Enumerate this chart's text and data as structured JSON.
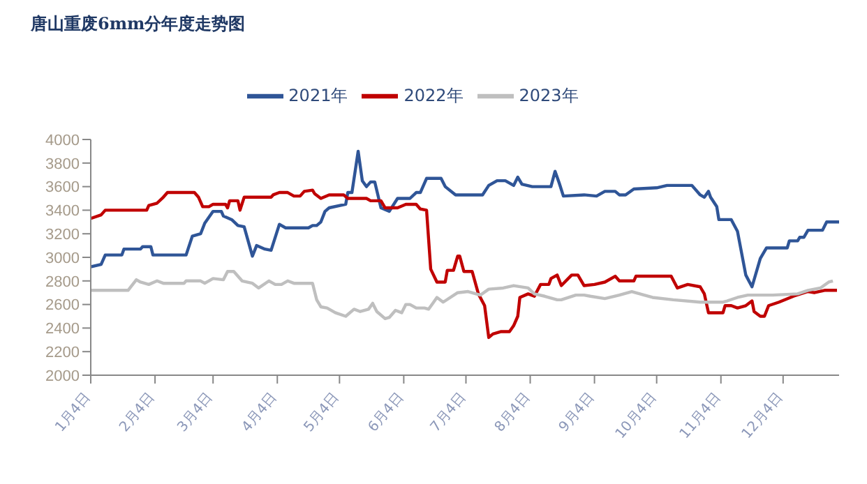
{
  "chart_data": {
    "type": "line",
    "title": "唐山重废6mm分年度走势图",
    "xlim": [
      "--01-04",
      "--12-31"
    ],
    "xticks": [
      {
        "value": "--01-04",
        "label": "1月4日"
      },
      {
        "value": "--02-04",
        "label": "2月4日"
      },
      {
        "value": "--03-04",
        "label": "3月4日"
      },
      {
        "value": "--04-04",
        "label": "4月4日"
      },
      {
        "value": "--05-04",
        "label": "5月4日"
      },
      {
        "value": "--06-04",
        "label": "6月4日"
      },
      {
        "value": "--07-04",
        "label": "7月4日"
      },
      {
        "value": "--08-04",
        "label": "8月4日"
      },
      {
        "value": "--09-04",
        "label": "9月4日"
      },
      {
        "value": "--10-04",
        "label": "10月4日"
      },
      {
        "value": "--11-04",
        "label": "11月4日"
      },
      {
        "value": "--12-04",
        "label": "12月4日"
      }
    ],
    "ylim": [
      2000,
      4000
    ],
    "yticks": [
      2000,
      2200,
      2400,
      2600,
      2800,
      3000,
      3200,
      3400,
      3600,
      3800,
      4000
    ],
    "legend": "top",
    "marker": "none",
    "line_style": "solid",
    "series": [
      {
        "name": "2021年",
        "color": "#2f5597",
        "x": [
          "--01-04",
          "--01-09",
          "--01-11",
          "--01-19",
          "--01-20",
          "--01-28",
          "--01-29",
          "--02-02",
          "--02-03",
          "--02-19",
          "--02-22",
          "--02-26",
          "--02-28",
          "--03-04",
          "--03-08",
          "--03-09",
          "--03-13",
          "--03-16",
          "--03-19",
          "--03-23",
          "--03-25",
          "--03-29",
          "--04-01",
          "--04-05",
          "--04-08",
          "--04-19",
          "--04-21",
          "--04-23",
          "--04-25",
          "--04-27",
          "--04-29",
          "--05-07",
          "--05-08",
          "--05-10",
          "--05-13",
          "--05-15",
          "--05-17",
          "--05-19",
          "--05-21",
          "--05-24",
          "--05-28",
          "--06-01",
          "--06-07",
          "--06-10",
          "--06-12",
          "--06-15",
          "--06-22",
          "--06-24",
          "--06-29",
          "--07-12",
          "--07-15",
          "--07-19",
          "--07-23",
          "--07-27",
          "--07-29",
          "--07-31",
          "--08-05",
          "--08-14",
          "--08-16",
          "--08-18",
          "--08-20",
          "--08-30",
          "--09-05",
          "--09-09",
          "--09-14",
          "--09-16",
          "--09-19",
          "--09-23",
          "--10-04",
          "--10-09",
          "--10-21",
          "--10-25",
          "--10-27",
          "--10-29",
          "--10-30",
          "--11-02",
          "--11-03",
          "--11-09",
          "--11-12",
          "--11-16",
          "--11-19",
          "--11-23",
          "--11-26",
          "--12-06",
          "--12-07",
          "--12-11",
          "--12-12",
          "--12-14",
          "--12-16",
          "--12-23",
          "--12-25",
          "--12-31"
        ],
        "values": [
          2920,
          2940,
          3020,
          3020,
          3070,
          3070,
          3090,
          3090,
          3020,
          3020,
          3180,
          3200,
          3290,
          3390,
          3390,
          3350,
          3320,
          3270,
          3260,
          3010,
          3100,
          3070,
          3060,
          3280,
          3250,
          3250,
          3270,
          3270,
          3300,
          3390,
          3420,
          3450,
          3550,
          3550,
          3900,
          3650,
          3600,
          3640,
          3640,
          3420,
          3390,
          3500,
          3500,
          3550,
          3550,
          3670,
          3670,
          3600,
          3530,
          3530,
          3610,
          3650,
          3650,
          3610,
          3680,
          3620,
          3600,
          3600,
          3730,
          3630,
          3520,
          3530,
          3520,
          3560,
          3560,
          3530,
          3530,
          3580,
          3590,
          3610,
          3610,
          3530,
          3510,
          3560,
          3510,
          3430,
          3320,
          3320,
          3220,
          2850,
          2750,
          2990,
          3080,
          3080,
          3140,
          3140,
          3170,
          3170,
          3230,
          3230,
          3300,
          3300
        ]
      },
      {
        "name": "2022年",
        "color": "#c00000",
        "x": [
          "--01-04",
          "--01-09",
          "--01-11",
          "--01-31",
          "--02-01",
          "--02-05",
          "--02-08",
          "--02-10",
          "--02-23",
          "--02-25",
          "--02-27",
          "--03-02",
          "--03-04",
          "--03-10",
          "--03-11",
          "--03-12",
          "--03-16",
          "--03-17",
          "--03-19",
          "--04-01",
          "--04-02",
          "--04-05",
          "--04-09",
          "--04-12",
          "--04-15",
          "--04-17",
          "--04-21",
          "--04-22",
          "--04-25",
          "--04-29",
          "--05-06",
          "--05-08",
          "--05-17",
          "--05-19",
          "--05-24",
          "--05-26",
          "--06-01",
          "--06-05",
          "--06-10",
          "--06-12",
          "--06-15",
          "--06-17",
          "--06-20",
          "--06-24",
          "--06-25",
          "--06-28",
          "--06-30",
          "--07-01",
          "--07-03",
          "--07-07",
          "--07-10",
          "--07-13",
          "--07-15",
          "--07-17",
          "--07-21",
          "--07-25",
          "--07-27",
          "--07-29",
          "--07-30",
          "--08-03",
          "--08-06",
          "--08-09",
          "--08-13",
          "--08-14",
          "--08-17",
          "--08-19",
          "--08-24",
          "--08-27",
          "--08-30",
          "--09-04",
          "--09-09",
          "--09-14",
          "--09-16",
          "--09-23",
          "--09-24",
          "--10-11",
          "--10-14",
          "--10-19",
          "--10-25",
          "--10-27",
          "--10-29",
          "--11-05",
          "--11-06",
          "--11-09",
          "--11-12",
          "--11-16",
          "--11-19",
          "--11-20",
          "--11-23",
          "--11-25",
          "--11-27",
          "--12-02",
          "--12-09",
          "--12-16",
          "--12-19",
          "--12-24",
          "--12-30"
        ],
        "values": [
          3330,
          3360,
          3400,
          3400,
          3440,
          3460,
          3510,
          3550,
          3550,
          3510,
          3430,
          3430,
          3450,
          3450,
          3420,
          3480,
          3480,
          3400,
          3510,
          3510,
          3530,
          3550,
          3550,
          3520,
          3520,
          3560,
          3570,
          3540,
          3500,
          3530,
          3530,
          3500,
          3500,
          3480,
          3480,
          3420,
          3420,
          3450,
          3450,
          3410,
          3400,
          2900,
          2790,
          2790,
          2890,
          2890,
          3010,
          3010,
          2880,
          2880,
          2690,
          2590,
          2320,
          2350,
          2370,
          2370,
          2420,
          2500,
          2660,
          2690,
          2670,
          2770,
          2770,
          2820,
          2850,
          2760,
          2850,
          2850,
          2760,
          2770,
          2790,
          2840,
          2800,
          2800,
          2840,
          2840,
          2740,
          2770,
          2750,
          2690,
          2530,
          2530,
          2590,
          2590,
          2570,
          2590,
          2630,
          2540,
          2500,
          2500,
          2590,
          2620,
          2670,
          2710,
          2700,
          2720,
          2720
        ]
      },
      {
        "name": "2023年",
        "color": "#bfbfbf",
        "x": [
          "--01-04",
          "--01-22",
          "--01-26",
          "--01-28",
          "--02-01",
          "--02-05",
          "--02-08",
          "--02-18",
          "--02-19",
          "--02-26",
          "--02-28",
          "--03-04",
          "--03-09",
          "--03-11",
          "--03-14",
          "--03-18",
          "--03-23",
          "--03-26",
          "--03-31",
          "--04-03",
          "--04-06",
          "--04-09",
          "--04-12",
          "--04-21",
          "--04-23",
          "--04-25",
          "--04-28",
          "--05-02",
          "--05-07",
          "--05-11",
          "--05-14",
          "--05-18",
          "--05-20",
          "--05-22",
          "--05-26",
          "--05-28",
          "--05-31",
          "--06-03",
          "--06-05",
          "--06-07",
          "--06-10",
          "--06-14",
          "--06-16",
          "--06-18",
          "--06-20",
          "--06-23",
          "--06-30",
          "--07-05",
          "--07-11",
          "--07-15",
          "--07-22",
          "--07-27",
          "--08-03",
          "--08-06",
          "--08-11",
          "--08-17",
          "--08-19",
          "--08-26",
          "--08-30",
          "--09-02",
          "--09-09",
          "--09-16",
          "--09-22",
          "--09-28",
          "--10-02",
          "--10-12",
          "--10-25",
          "--11-05",
          "--11-07",
          "--11-12",
          "--11-17",
          "--11-29",
          "--12-11",
          "--12-16",
          "--12-22",
          "--12-26",
          "--12-28"
        ],
        "values": [
          2720,
          2720,
          2810,
          2790,
          2770,
          2800,
          2780,
          2780,
          2800,
          2800,
          2780,
          2820,
          2810,
          2880,
          2880,
          2800,
          2780,
          2740,
          2800,
          2770,
          2770,
          2800,
          2780,
          2780,
          2640,
          2580,
          2570,
          2530,
          2500,
          2560,
          2540,
          2560,
          2610,
          2540,
          2480,
          2490,
          2550,
          2530,
          2600,
          2600,
          2570,
          2570,
          2560,
          2610,
          2660,
          2620,
          2700,
          2710,
          2680,
          2730,
          2740,
          2760,
          2740,
          2690,
          2670,
          2640,
          2640,
          2680,
          2680,
          2670,
          2650,
          2680,
          2710,
          2680,
          2660,
          2640,
          2620,
          2620,
          2630,
          2660,
          2680,
          2680,
          2690,
          2720,
          2740,
          2790,
          2800
        ]
      }
    ]
  }
}
